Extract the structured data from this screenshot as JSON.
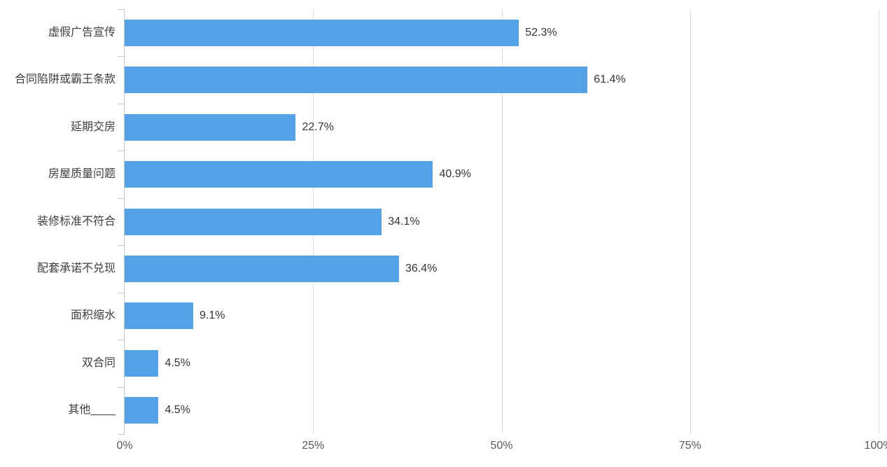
{
  "chart_data": {
    "type": "bar",
    "orientation": "horizontal",
    "title": "",
    "categories": [
      "虚假广告宣传",
      "合同陷阱或霸王条款",
      "延期交房",
      "房屋质量问题",
      "装修标准不符合",
      "配套承诺不兑现",
      "面积缩水",
      "双合同",
      "其他____"
    ],
    "values": [
      52.3,
      61.4,
      22.7,
      40.9,
      34.1,
      36.4,
      9.1,
      4.5,
      4.5
    ],
    "value_labels": [
      "52.3%",
      "61.4%",
      "22.7%",
      "40.9%",
      "34.1%",
      "36.4%",
      "9.1%",
      "4.5%",
      "4.5%"
    ],
    "x_tick_labels": [
      "0%",
      "25%",
      "50%",
      "75%",
      "100%"
    ],
    "x_tick_values": [
      0,
      25,
      50,
      75,
      100
    ],
    "xlim": [
      0,
      100
    ],
    "grid": true,
    "legend": "none",
    "xlabel": "",
    "ylabel": ""
  },
  "colors": {
    "bar": "#55A1E6",
    "axis": "#C6C6C6",
    "gridline": "#DCDCDC",
    "category_label": "#3D3D3D",
    "value_label": "#333333",
    "x_tick_label": "#595959",
    "background": "#FFFFFF"
  }
}
